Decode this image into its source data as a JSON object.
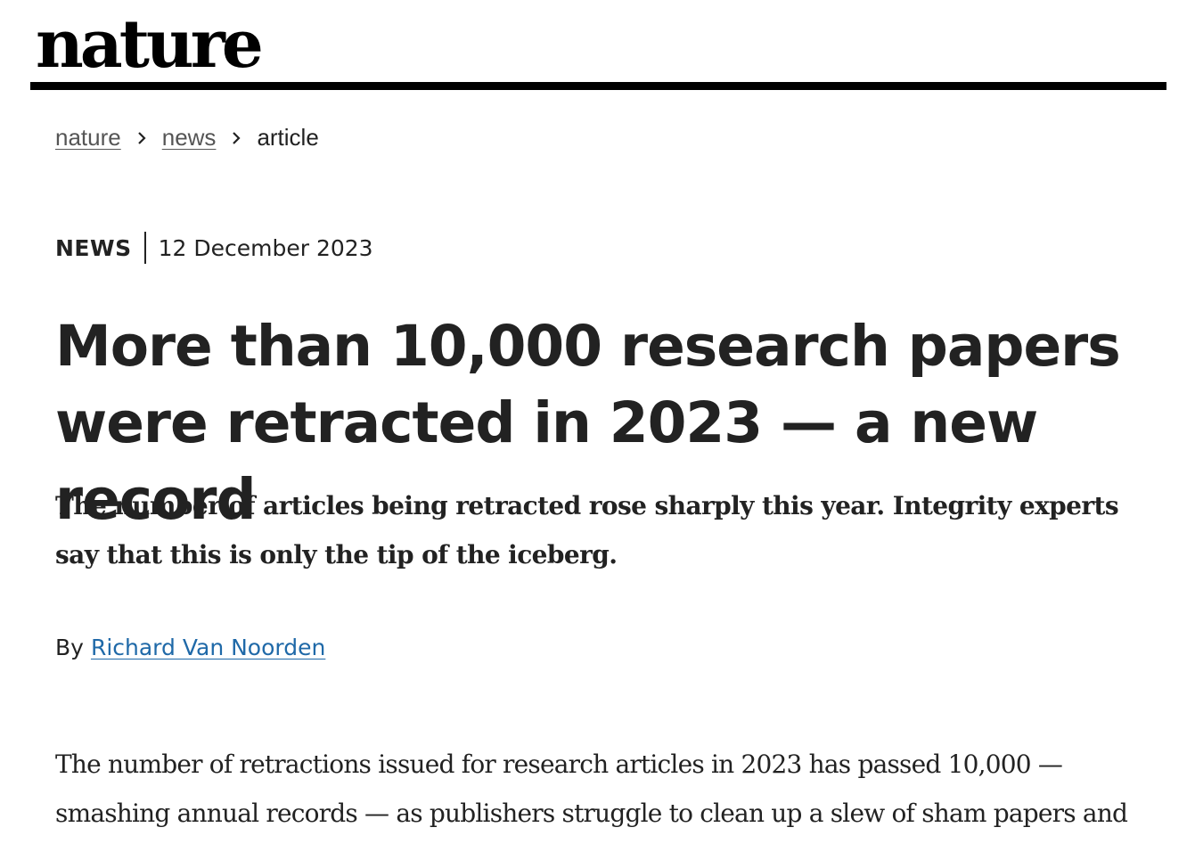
{
  "masthead": {
    "logo_text": "nature"
  },
  "breadcrumb": {
    "items": [
      "nature",
      "news"
    ],
    "current": "article"
  },
  "article": {
    "type": "NEWS",
    "date": "12 December 2023",
    "headline": "More than 10,000 research papers were retracted in 2023 — a new record",
    "standfirst": "The number of articles being retracted rose sharply this year. Integrity experts say that this is only the tip of the iceberg.",
    "byline_prefix": "By",
    "author": "Richard Van Noorden",
    "body_first_paragraph": "The number of retractions issued for research articles in 2023 has passed 10,000 — smashing annual records — as publishers struggle to clean up a slew of sham papers and"
  },
  "colors": {
    "link_blue": "#1f69a8",
    "text": "#222222",
    "rule": "#000000"
  },
  "icons": {
    "breadcrumb_separator": "chevron-right-icon"
  }
}
